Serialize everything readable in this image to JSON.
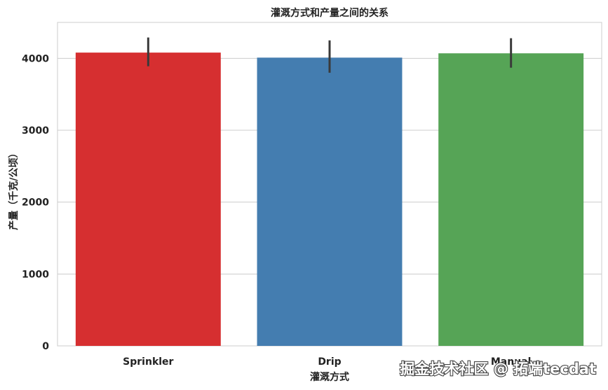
{
  "chart_data": {
    "type": "bar",
    "title": "灌溉方式和产量之间的关系",
    "xlabel": "灌溉方式",
    "ylabel": "产量（千克/公顷）",
    "categories": [
      "Sprinkler",
      "Drip",
      "Manual"
    ],
    "values": [
      4080,
      4010,
      4070
    ],
    "error_low": [
      3890,
      3800,
      3870
    ],
    "error_high": [
      4290,
      4250,
      4280
    ],
    "colors": [
      "#d62f30",
      "#447db0",
      "#56a456"
    ],
    "ylim": [
      0,
      4500
    ],
    "yticks": [
      0,
      1000,
      2000,
      3000,
      4000
    ],
    "grid": "y"
  },
  "watermark": "掘金技术社区 @ 拓端tecdat"
}
